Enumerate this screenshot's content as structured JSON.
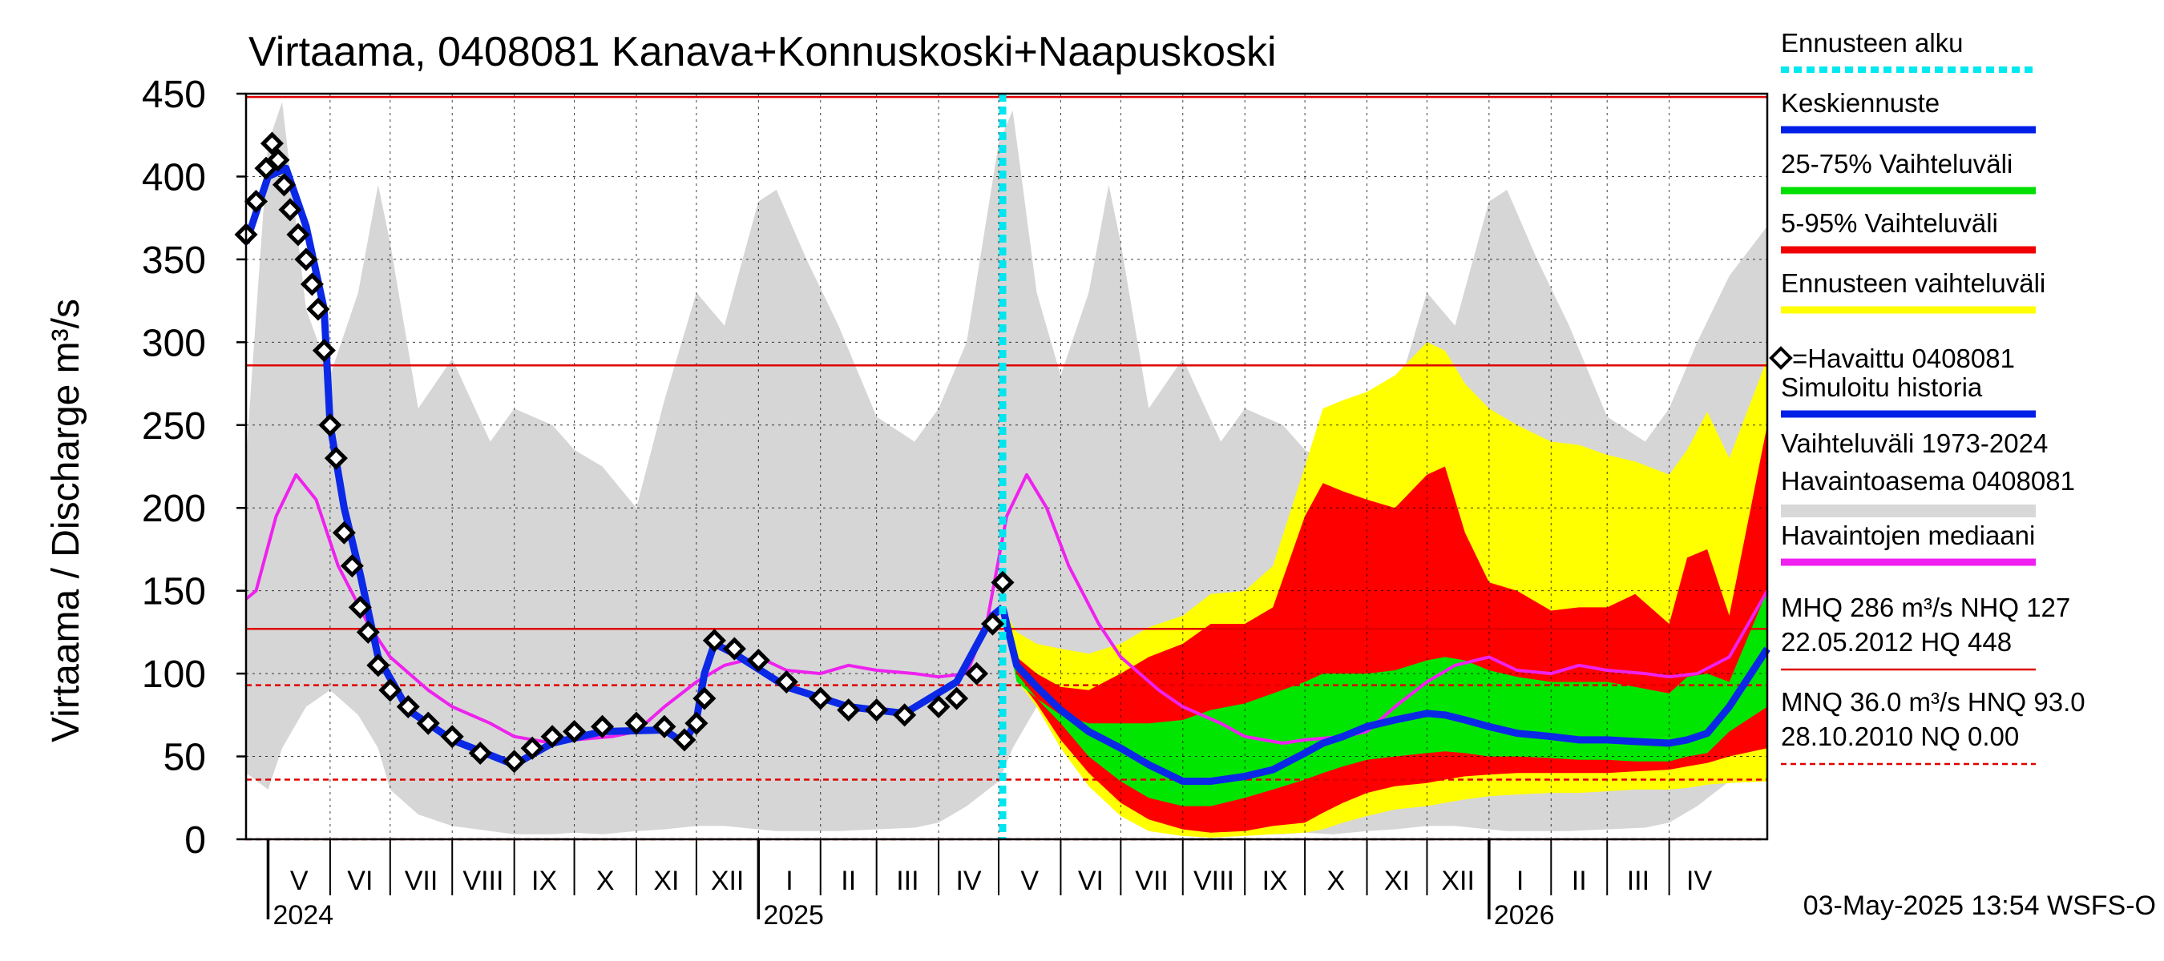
{
  "chart_data": {
    "type": "line",
    "title": "Virtaama, 0408081 Kanava+Konnuskoski+Naapuskoski",
    "ylabel": "Virtaama / Discharge   m³/s",
    "ylim": [
      0,
      450
    ],
    "yticks": [
      0,
      50,
      100,
      150,
      200,
      250,
      300,
      350,
      400,
      450
    ],
    "xlim": [
      "2024-04-20",
      "2026-05-20"
    ],
    "forecast_start": "2025-05-03",
    "months": [
      {
        "label": "V",
        "start": "2024-05-01",
        "end": "2024-06-01"
      },
      {
        "label": "VI",
        "start": "2024-06-01",
        "end": "2024-07-01"
      },
      {
        "label": "VII",
        "start": "2024-07-01",
        "end": "2024-08-01"
      },
      {
        "label": "VIII",
        "start": "2024-08-01",
        "end": "2024-09-01"
      },
      {
        "label": "IX",
        "start": "2024-09-01",
        "end": "2024-10-01"
      },
      {
        "label": "X",
        "start": "2024-10-01",
        "end": "2024-11-01"
      },
      {
        "label": "XI",
        "start": "2024-11-01",
        "end": "2024-12-01"
      },
      {
        "label": "XII",
        "start": "2024-12-01",
        "end": "2025-01-01"
      },
      {
        "label": "I",
        "start": "2025-01-01",
        "end": "2025-02-01"
      },
      {
        "label": "II",
        "start": "2025-02-01",
        "end": "2025-03-01"
      },
      {
        "label": "III",
        "start": "2025-03-01",
        "end": "2025-04-01"
      },
      {
        "label": "IV",
        "start": "2025-04-01",
        "end": "2025-05-01"
      },
      {
        "label": "V",
        "start": "2025-05-01",
        "end": "2025-06-01"
      },
      {
        "label": "VI",
        "start": "2025-06-01",
        "end": "2025-07-01"
      },
      {
        "label": "VII",
        "start": "2025-07-01",
        "end": "2025-08-01"
      },
      {
        "label": "VIII",
        "start": "2025-08-01",
        "end": "2025-09-01"
      },
      {
        "label": "IX",
        "start": "2025-09-01",
        "end": "2025-10-01"
      },
      {
        "label": "X",
        "start": "2025-10-01",
        "end": "2025-11-01"
      },
      {
        "label": "XI",
        "start": "2025-11-01",
        "end": "2025-12-01"
      },
      {
        "label": "XII",
        "start": "2025-12-01",
        "end": "2026-01-01"
      },
      {
        "label": "I",
        "start": "2026-01-01",
        "end": "2026-02-01"
      },
      {
        "label": "II",
        "start": "2026-02-01",
        "end": "2026-03-01"
      },
      {
        "label": "III",
        "start": "2026-03-01",
        "end": "2026-04-01"
      },
      {
        "label": "IV",
        "start": "2026-04-01",
        "end": "2026-05-01"
      }
    ],
    "years": [
      {
        "label": "2024",
        "date": "2024-05-01"
      },
      {
        "label": "2025",
        "date": "2025-01-01"
      },
      {
        "label": "2026",
        "date": "2026-01-01"
      }
    ],
    "reference_lines": [
      {
        "name": "HQ",
        "value": 448,
        "style": "solid"
      },
      {
        "name": "MHQ",
        "value": 286,
        "style": "solid"
      },
      {
        "name": "NHQ",
        "value": 127,
        "style": "solid"
      },
      {
        "name": "HNQ",
        "value": 93,
        "style": "dashed"
      },
      {
        "name": "MNQ",
        "value": 36,
        "style": "dashed"
      },
      {
        "name": "NQ",
        "value": 0,
        "style": "dashed"
      }
    ],
    "history_band": {
      "dates": [
        "2024-04-20",
        "2024-05-01",
        "2024-05-08",
        "2024-05-20",
        "2024-06-01",
        "2024-06-15",
        "2024-06-25",
        "2024-07-01",
        "2024-07-15",
        "2024-08-01",
        "2024-08-20",
        "2024-09-01",
        "2024-09-20",
        "2024-10-01",
        "2024-10-15",
        "2024-11-01",
        "2024-11-15",
        "2024-12-01",
        "2024-12-15",
        "2025-01-01",
        "2025-01-10",
        "2025-01-25",
        "2025-02-10",
        "2025-03-01",
        "2025-03-20",
        "2025-04-01",
        "2025-04-15",
        "2025-05-01",
        "2025-05-08",
        "2025-05-20",
        "2025-06-01",
        "2025-06-15",
        "2025-06-25",
        "2025-07-01",
        "2025-07-15",
        "2025-08-01",
        "2025-08-20",
        "2025-09-01",
        "2025-09-20",
        "2025-10-01",
        "2025-10-15",
        "2025-11-01",
        "2025-11-15",
        "2025-12-01",
        "2025-12-15",
        "2026-01-01",
        "2026-01-10",
        "2026-01-25",
        "2026-02-10",
        "2026-03-01",
        "2026-03-20",
        "2026-04-01",
        "2026-04-15",
        "2026-05-01",
        "2026-05-20"
      ],
      "upper": [
        230,
        420,
        445,
        320,
        280,
        330,
        395,
        360,
        260,
        290,
        240,
        260,
        250,
        235,
        225,
        200,
        265,
        330,
        310,
        385,
        392,
        350,
        310,
        255,
        240,
        260,
        300,
        420,
        440,
        330,
        280,
        330,
        395,
        360,
        260,
        290,
        240,
        260,
        250,
        235,
        225,
        200,
        265,
        330,
        310,
        385,
        392,
        350,
        310,
        255,
        240,
        260,
        300,
        340,
        370
      ],
      "lower": [
        40,
        30,
        55,
        80,
        90,
        75,
        55,
        30,
        15,
        8,
        5,
        3,
        3,
        4,
        3,
        5,
        6,
        8,
        8,
        6,
        5,
        5,
        5,
        6,
        7,
        10,
        20,
        35,
        55,
        80,
        90,
        75,
        55,
        30,
        15,
        8,
        5,
        3,
        3,
        4,
        3,
        5,
        6,
        8,
        8,
        6,
        5,
        5,
        5,
        6,
        7,
        10,
        20,
        35,
        40
      ]
    },
    "series": [
      {
        "name": "=Havaittu 0408081",
        "dates": [
          "2024-04-20",
          "2024-04-25",
          "2024-04-30",
          "2024-05-03",
          "2024-05-06",
          "2024-05-09",
          "2024-05-12",
          "2024-05-16",
          "2024-05-20",
          "2024-05-23",
          "2024-05-26",
          "2024-05-29",
          "2024-06-01",
          "2024-06-04",
          "2024-06-08",
          "2024-06-12",
          "2024-06-16",
          "2024-06-20",
          "2024-06-25",
          "2024-07-01",
          "2024-07-10",
          "2024-07-20",
          "2024-08-01",
          "2024-08-15",
          "2024-09-01",
          "2024-09-10",
          "2024-09-20",
          "2024-10-01",
          "2024-10-15",
          "2024-11-01",
          "2024-11-15",
          "2024-11-25",
          "2024-12-01",
          "2024-12-05",
          "2024-12-10",
          "2024-12-20",
          "2025-01-01",
          "2025-01-15",
          "2025-02-01",
          "2025-02-15",
          "2025-03-01",
          "2025-03-15",
          "2025-04-01",
          "2025-04-10",
          "2025-04-20",
          "2025-04-28",
          "2025-05-03"
        ],
        "values": [
          365,
          385,
          405,
          420,
          410,
          395,
          380,
          365,
          350,
          335,
          320,
          295,
          250,
          230,
          185,
          165,
          140,
          125,
          105,
          90,
          80,
          70,
          62,
          52,
          47,
          55,
          62,
          65,
          68,
          70,
          68,
          60,
          70,
          85,
          120,
          115,
          108,
          95,
          85,
          78,
          78,
          75,
          80,
          85,
          100,
          130,
          155
        ]
      },
      {
        "name": "Simuloitu historia",
        "dates": [
          "2024-04-20",
          "2024-05-01",
          "2024-05-10",
          "2024-05-20",
          "2024-05-29",
          "2024-06-01",
          "2024-06-08",
          "2024-06-16",
          "2024-06-25",
          "2024-07-10",
          "2024-08-01",
          "2024-09-01",
          "2024-09-20",
          "2024-10-15",
          "2024-11-15",
          "2024-11-25",
          "2024-12-01",
          "2024-12-05",
          "2024-12-10",
          "2024-12-20",
          "2025-01-15",
          "2025-02-15",
          "2025-03-15",
          "2025-04-10",
          "2025-04-28",
          "2025-05-03"
        ],
        "values": [
          360,
          400,
          405,
          370,
          320,
          250,
          200,
          160,
          110,
          78,
          60,
          45,
          58,
          65,
          66,
          58,
          72,
          100,
          118,
          112,
          92,
          80,
          76,
          95,
          135,
          140
        ]
      },
      {
        "name": "Havaintojen mediaani",
        "dates": [
          "2024-04-20",
          "2024-04-25",
          "2024-05-05",
          "2024-05-15",
          "2024-05-25",
          "2024-06-05",
          "2024-06-20",
          "2024-07-01",
          "2024-07-20",
          "2024-08-01",
          "2024-08-20",
          "2024-09-01",
          "2024-09-20",
          "2024-10-01",
          "2024-10-20",
          "2024-11-01",
          "2024-11-15",
          "2024-12-01",
          "2024-12-15",
          "2025-01-01",
          "2025-01-15",
          "2025-02-01",
          "2025-02-15",
          "2025-03-01",
          "2025-03-20",
          "2025-04-01",
          "2025-04-15",
          "2025-04-25",
          "2025-05-05",
          "2025-05-15",
          "2025-05-25",
          "2025-06-05",
          "2025-06-20",
          "2025-07-01",
          "2025-07-20",
          "2025-08-01",
          "2025-08-20",
          "2025-09-01",
          "2025-09-20",
          "2025-10-01",
          "2025-10-20",
          "2025-11-01",
          "2025-11-15",
          "2025-12-01",
          "2025-12-15",
          "2026-01-01",
          "2026-01-15",
          "2026-02-01",
          "2026-02-15",
          "2026-03-01",
          "2026-03-20",
          "2026-04-01",
          "2026-04-15",
          "2026-05-01",
          "2026-05-20"
        ],
        "values": [
          145,
          150,
          195,
          220,
          205,
          165,
          130,
          110,
          90,
          80,
          70,
          62,
          58,
          60,
          62,
          65,
          80,
          95,
          105,
          110,
          102,
          100,
          105,
          102,
          100,
          98,
          100,
          130,
          195,
          220,
          200,
          165,
          130,
          110,
          90,
          80,
          70,
          62,
          58,
          60,
          62,
          65,
          80,
          95,
          105,
          110,
          102,
          100,
          105,
          102,
          100,
          98,
          100,
          110,
          150
        ]
      }
    ],
    "forecast": {
      "dates": [
        "2025-05-03",
        "2025-05-10",
        "2025-05-20",
        "2025-06-01",
        "2025-06-15",
        "2025-07-01",
        "2025-07-15",
        "2025-08-01",
        "2025-08-15",
        "2025-09-01",
        "2025-09-15",
        "2025-10-01",
        "2025-10-10",
        "2025-10-20",
        "2025-11-01",
        "2025-11-15",
        "2025-12-01",
        "2025-12-10",
        "2025-12-20",
        "2026-01-01",
        "2026-01-15",
        "2026-02-01",
        "2026-02-15",
        "2026-03-01",
        "2026-03-15",
        "2026-04-01",
        "2026-04-10",
        "2026-04-20",
        "2026-05-01",
        "2026-05-20"
      ],
      "ensemble_upper": [
        140,
        125,
        118,
        115,
        112,
        118,
        128,
        135,
        148,
        150,
        165,
        225,
        260,
        265,
        270,
        280,
        300,
        295,
        275,
        260,
        250,
        240,
        238,
        232,
        228,
        220,
        235,
        258,
        230,
        290
      ],
      "p95": [
        138,
        110,
        100,
        92,
        90,
        100,
        110,
        118,
        130,
        130,
        140,
        195,
        215,
        210,
        205,
        200,
        220,
        225,
        185,
        155,
        150,
        138,
        140,
        140,
        148,
        130,
        170,
        175,
        135,
        250
      ],
      "p75": [
        136,
        95,
        85,
        75,
        70,
        70,
        70,
        72,
        78,
        82,
        88,
        95,
        100,
        100,
        100,
        102,
        108,
        110,
        108,
        102,
        98,
        95,
        95,
        95,
        92,
        88,
        98,
        100,
        95,
        150
      ],
      "mean": [
        140,
        105,
        92,
        78,
        65,
        55,
        45,
        35,
        35,
        38,
        42,
        52,
        58,
        62,
        68,
        72,
        76,
        75,
        72,
        68,
        64,
        62,
        60,
        60,
        59,
        58,
        60,
        64,
        80,
        115
      ],
      "p25": [
        135,
        100,
        85,
        70,
        50,
        35,
        25,
        20,
        20,
        25,
        30,
        36,
        40,
        44,
        48,
        50,
        52,
        53,
        52,
        50,
        50,
        49,
        48,
        48,
        47,
        47,
        50,
        52,
        65,
        80
      ],
      "p05": [
        133,
        98,
        82,
        60,
        40,
        22,
        12,
        6,
        4,
        5,
        8,
        10,
        16,
        22,
        28,
        32,
        34,
        36,
        38,
        39,
        40,
        40,
        40,
        40,
        41,
        42,
        44,
        46,
        50,
        55
      ],
      "ensemble_lower": [
        132,
        96,
        80,
        55,
        32,
        14,
        5,
        2,
        1,
        2,
        3,
        4,
        6,
        10,
        14,
        18,
        20,
        22,
        24,
        26,
        27,
        28,
        28,
        29,
        30,
        30,
        31,
        33,
        34,
        35
      ]
    },
    "legend": [
      {
        "label": "Ennusteen alku",
        "color": "#00e8f0",
        "style": "dotted"
      },
      {
        "label": "Keskiennuste",
        "color": "#0020e8",
        "style": "solid"
      },
      {
        "label": "25-75% Vaihteluväli",
        "color": "#00e000",
        "style": "solid"
      },
      {
        "label": "5-95% Vaihteluväli",
        "color": "#f00000",
        "style": "solid"
      },
      {
        "label": "Ennusteen vaihteluväli",
        "color": "#ffff00",
        "style": "solid"
      },
      {
        "label": "=Havaittu 0408081",
        "color": "#000000",
        "style": "diamond"
      },
      {
        "label": "Simuloitu historia",
        "color": "#0020e8",
        "style": "solid"
      },
      {
        "label": "Vaihteluväli 1973-2024",
        "label2": " Havaintoasema 0408081",
        "color": "#d8d8d8",
        "style": "band"
      },
      {
        "label": "Havaintojen mediaani",
        "color": "#f020f0",
        "style": "solid"
      }
    ],
    "stats": [
      {
        "line1": "MHQ  286 m³/s NHQ  127",
        "line2": "22.05.2012 HQ  448",
        "color": "#e00000",
        "style": "solid"
      },
      {
        "line1": "MNQ 36.0 m³/s HNQ 93.0",
        "line2": "28.10.2010 NQ 0.00",
        "color": "#e00000",
        "style": "dashed"
      }
    ],
    "footer": "03-May-2025 13:54 WSFS-O"
  },
  "colors": {
    "history_band": "#d6d6d6",
    "ensemble": "#ffff00",
    "p5_95": "#ff0000",
    "p25_75": "#00e600",
    "mean": "#0a28e6",
    "median": "#ee22ee",
    "observed": "#000000",
    "refline": "#e00000",
    "forecast_start": "#00e6f0",
    "grid": "#000000"
  }
}
